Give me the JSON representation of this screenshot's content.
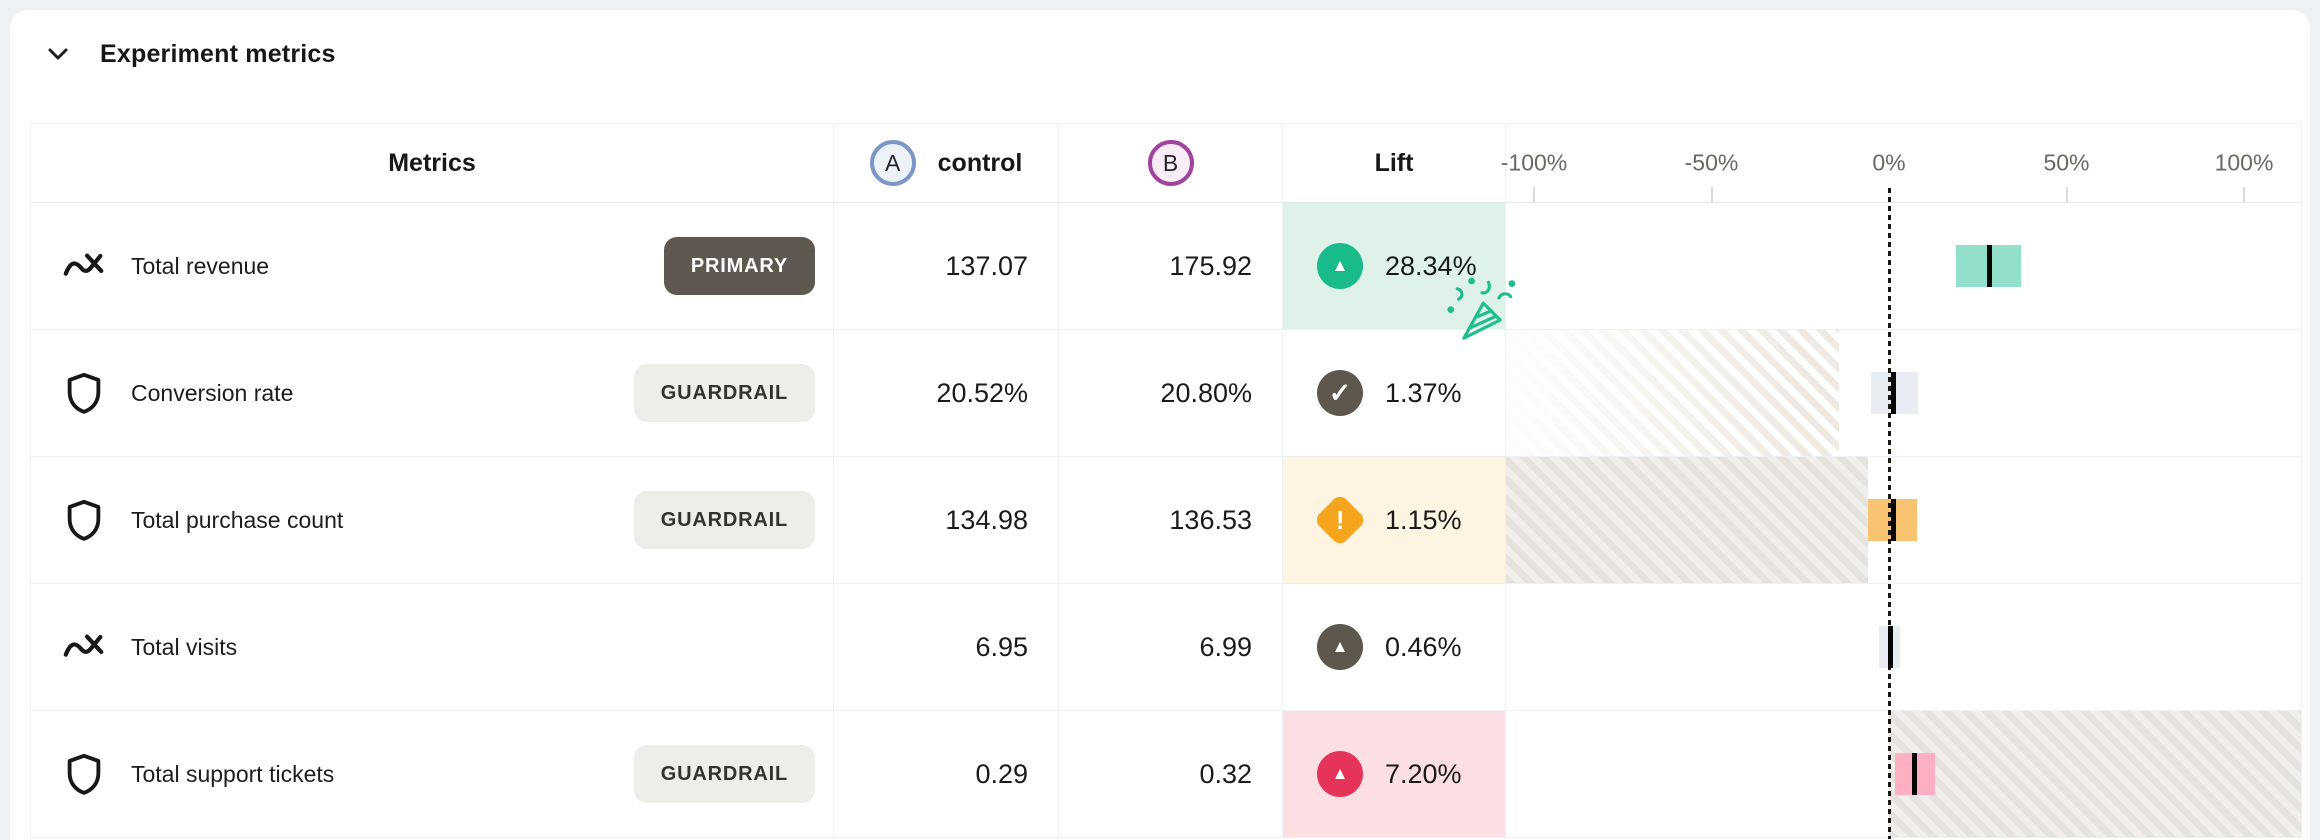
{
  "section": {
    "title": "Experiment metrics"
  },
  "colors": {
    "positive": "#19bb8b",
    "positive_bg": "#def2ea",
    "positive_bar": "#92dfcc",
    "neutral": "#5d574d",
    "neutral_bar": "#e8edf4",
    "warning": "#f6a61e",
    "warning_bg": "#fdf4e1",
    "warning_bar": "#f9c472",
    "negative": "#e63359",
    "negative_bg": "#fcdfe2",
    "negative_bar": "#feb0c2",
    "variant_a_ring": "#7b96c7",
    "variant_b_ring": "#a2439e",
    "primary_badge_bg": "#5e5850",
    "guardrail_badge_bg": "#efede8"
  },
  "table": {
    "columns": {
      "metrics": "Metrics",
      "variant_a": "A",
      "control": "control",
      "variant_b": "B",
      "lift": "Lift"
    },
    "axis": {
      "ticks": [
        {
          "label": "-100%",
          "value": -100
        },
        {
          "label": "-50%",
          "value": -50
        },
        {
          "label": "0%",
          "value": 0
        },
        {
          "label": "50%",
          "value": 50
        },
        {
          "label": "100%",
          "value": 100
        }
      ]
    },
    "rows": [
      {
        "name": "Total revenue",
        "icon": "trend",
        "badge": "PRIMARY",
        "control": "137.07",
        "variant": "175.92",
        "lift": {
          "value": "28.34%",
          "status": "positive",
          "icon": "arrow-up",
          "celebration": true
        },
        "viz": {
          "ci_low_pct": 18.8,
          "ci_high_pct": 37.3,
          "point_pct": 28.34
        }
      },
      {
        "name": "Conversion rate",
        "icon": "shield",
        "badge": "GUARDRAIL",
        "control": "20.52%",
        "variant": "20.80%",
        "lift": {
          "value": "1.37%",
          "status": "neutral",
          "icon": "check",
          "celebration": false
        },
        "viz": {
          "ci_low_pct": -5.2,
          "ci_high_pct": 8.3,
          "point_pct": 1.37,
          "hatch": {
            "from_pct": -110,
            "to_pct": -14,
            "variant": "faded"
          }
        }
      },
      {
        "name": "Total purchase count",
        "icon": "shield",
        "badge": "GUARDRAIL",
        "control": "134.98",
        "variant": "136.53",
        "lift": {
          "value": "1.15%",
          "status": "warning",
          "icon": "warning",
          "celebration": false
        },
        "viz": {
          "ci_low_pct": -6.0,
          "ci_high_pct": 7.8,
          "point_pct": 1.15,
          "hatch": {
            "from_pct": -110,
            "to_pct": -6,
            "variant": "solid"
          }
        }
      },
      {
        "name": "Total visits",
        "icon": "trend",
        "badge": "",
        "control": "6.95",
        "variant": "6.99",
        "lift": {
          "value": "0.46%",
          "status": "neutral",
          "icon": "arrow-up",
          "celebration": false
        },
        "viz": {
          "ci_low_pct": -2.9,
          "ci_high_pct": 3.2,
          "point_pct": 0.46
        }
      },
      {
        "name": "Total support tickets",
        "icon": "shield",
        "badge": "GUARDRAIL",
        "control": "0.29",
        "variant": "0.32",
        "lift": {
          "value": "7.20%",
          "status": "negative",
          "icon": "arrow-up",
          "celebration": false
        },
        "viz": {
          "ci_low_pct": 1.6,
          "ci_high_pct": 13.0,
          "point_pct": 7.2,
          "hatch": {
            "from_pct": 0,
            "to_pct": 116,
            "variant": "solid"
          }
        }
      }
    ]
  }
}
